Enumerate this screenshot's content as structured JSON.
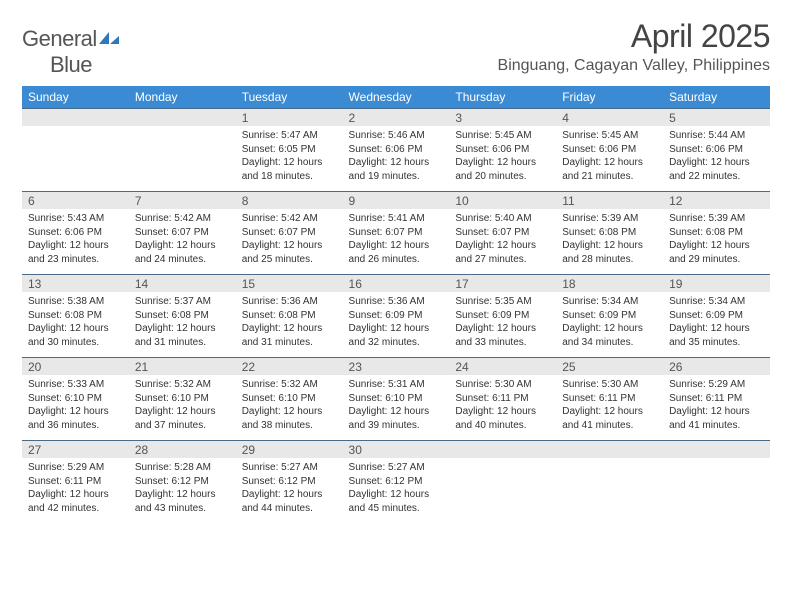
{
  "logo": {
    "word1": "General",
    "word2": "Blue"
  },
  "title": "April 2025",
  "location": "Binguang, Cagayan Valley, Philippines",
  "colors": {
    "header_bg": "#3b8bd4",
    "header_fg": "#ffffff",
    "daybar_bg": "#e8e8e8",
    "daybar_border": "#4a6a8a",
    "text": "#333333",
    "title": "#444444"
  },
  "day_headers": [
    "Sunday",
    "Monday",
    "Tuesday",
    "Wednesday",
    "Thursday",
    "Friday",
    "Saturday"
  ],
  "weeks": [
    [
      {
        "n": "",
        "sr": "",
        "ss": "",
        "dl": ""
      },
      {
        "n": "",
        "sr": "",
        "ss": "",
        "dl": ""
      },
      {
        "n": "1",
        "sr": "Sunrise: 5:47 AM",
        "ss": "Sunset: 6:05 PM",
        "dl": "Daylight: 12 hours and 18 minutes."
      },
      {
        "n": "2",
        "sr": "Sunrise: 5:46 AM",
        "ss": "Sunset: 6:06 PM",
        "dl": "Daylight: 12 hours and 19 minutes."
      },
      {
        "n": "3",
        "sr": "Sunrise: 5:45 AM",
        "ss": "Sunset: 6:06 PM",
        "dl": "Daylight: 12 hours and 20 minutes."
      },
      {
        "n": "4",
        "sr": "Sunrise: 5:45 AM",
        "ss": "Sunset: 6:06 PM",
        "dl": "Daylight: 12 hours and 21 minutes."
      },
      {
        "n": "5",
        "sr": "Sunrise: 5:44 AM",
        "ss": "Sunset: 6:06 PM",
        "dl": "Daylight: 12 hours and 22 minutes."
      }
    ],
    [
      {
        "n": "6",
        "sr": "Sunrise: 5:43 AM",
        "ss": "Sunset: 6:06 PM",
        "dl": "Daylight: 12 hours and 23 minutes."
      },
      {
        "n": "7",
        "sr": "Sunrise: 5:42 AM",
        "ss": "Sunset: 6:07 PM",
        "dl": "Daylight: 12 hours and 24 minutes."
      },
      {
        "n": "8",
        "sr": "Sunrise: 5:42 AM",
        "ss": "Sunset: 6:07 PM",
        "dl": "Daylight: 12 hours and 25 minutes."
      },
      {
        "n": "9",
        "sr": "Sunrise: 5:41 AM",
        "ss": "Sunset: 6:07 PM",
        "dl": "Daylight: 12 hours and 26 minutes."
      },
      {
        "n": "10",
        "sr": "Sunrise: 5:40 AM",
        "ss": "Sunset: 6:07 PM",
        "dl": "Daylight: 12 hours and 27 minutes."
      },
      {
        "n": "11",
        "sr": "Sunrise: 5:39 AM",
        "ss": "Sunset: 6:08 PM",
        "dl": "Daylight: 12 hours and 28 minutes."
      },
      {
        "n": "12",
        "sr": "Sunrise: 5:39 AM",
        "ss": "Sunset: 6:08 PM",
        "dl": "Daylight: 12 hours and 29 minutes."
      }
    ],
    [
      {
        "n": "13",
        "sr": "Sunrise: 5:38 AM",
        "ss": "Sunset: 6:08 PM",
        "dl": "Daylight: 12 hours and 30 minutes."
      },
      {
        "n": "14",
        "sr": "Sunrise: 5:37 AM",
        "ss": "Sunset: 6:08 PM",
        "dl": "Daylight: 12 hours and 31 minutes."
      },
      {
        "n": "15",
        "sr": "Sunrise: 5:36 AM",
        "ss": "Sunset: 6:08 PM",
        "dl": "Daylight: 12 hours and 31 minutes."
      },
      {
        "n": "16",
        "sr": "Sunrise: 5:36 AM",
        "ss": "Sunset: 6:09 PM",
        "dl": "Daylight: 12 hours and 32 minutes."
      },
      {
        "n": "17",
        "sr": "Sunrise: 5:35 AM",
        "ss": "Sunset: 6:09 PM",
        "dl": "Daylight: 12 hours and 33 minutes."
      },
      {
        "n": "18",
        "sr": "Sunrise: 5:34 AM",
        "ss": "Sunset: 6:09 PM",
        "dl": "Daylight: 12 hours and 34 minutes."
      },
      {
        "n": "19",
        "sr": "Sunrise: 5:34 AM",
        "ss": "Sunset: 6:09 PM",
        "dl": "Daylight: 12 hours and 35 minutes."
      }
    ],
    [
      {
        "n": "20",
        "sr": "Sunrise: 5:33 AM",
        "ss": "Sunset: 6:10 PM",
        "dl": "Daylight: 12 hours and 36 minutes."
      },
      {
        "n": "21",
        "sr": "Sunrise: 5:32 AM",
        "ss": "Sunset: 6:10 PM",
        "dl": "Daylight: 12 hours and 37 minutes."
      },
      {
        "n": "22",
        "sr": "Sunrise: 5:32 AM",
        "ss": "Sunset: 6:10 PM",
        "dl": "Daylight: 12 hours and 38 minutes."
      },
      {
        "n": "23",
        "sr": "Sunrise: 5:31 AM",
        "ss": "Sunset: 6:10 PM",
        "dl": "Daylight: 12 hours and 39 minutes."
      },
      {
        "n": "24",
        "sr": "Sunrise: 5:30 AM",
        "ss": "Sunset: 6:11 PM",
        "dl": "Daylight: 12 hours and 40 minutes."
      },
      {
        "n": "25",
        "sr": "Sunrise: 5:30 AM",
        "ss": "Sunset: 6:11 PM",
        "dl": "Daylight: 12 hours and 41 minutes."
      },
      {
        "n": "26",
        "sr": "Sunrise: 5:29 AM",
        "ss": "Sunset: 6:11 PM",
        "dl": "Daylight: 12 hours and 41 minutes."
      }
    ],
    [
      {
        "n": "27",
        "sr": "Sunrise: 5:29 AM",
        "ss": "Sunset: 6:11 PM",
        "dl": "Daylight: 12 hours and 42 minutes."
      },
      {
        "n": "28",
        "sr": "Sunrise: 5:28 AM",
        "ss": "Sunset: 6:12 PM",
        "dl": "Daylight: 12 hours and 43 minutes."
      },
      {
        "n": "29",
        "sr": "Sunrise: 5:27 AM",
        "ss": "Sunset: 6:12 PM",
        "dl": "Daylight: 12 hours and 44 minutes."
      },
      {
        "n": "30",
        "sr": "Sunrise: 5:27 AM",
        "ss": "Sunset: 6:12 PM",
        "dl": "Daylight: 12 hours and 45 minutes."
      },
      {
        "n": "",
        "sr": "",
        "ss": "",
        "dl": ""
      },
      {
        "n": "",
        "sr": "",
        "ss": "",
        "dl": ""
      },
      {
        "n": "",
        "sr": "",
        "ss": "",
        "dl": ""
      }
    ]
  ]
}
